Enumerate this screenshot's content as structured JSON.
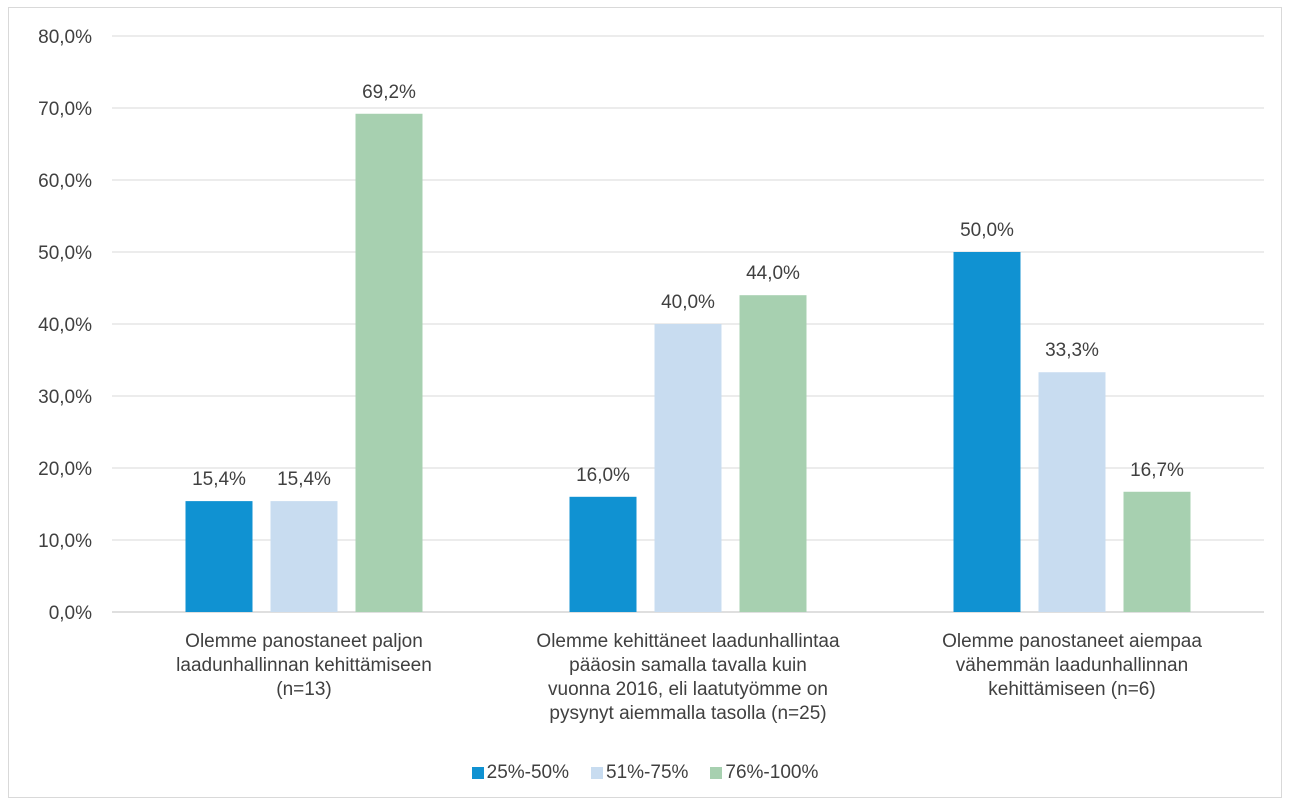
{
  "chart_data": {
    "type": "bar",
    "categories": [
      [
        "Olemme panostaneet paljon",
        "laadunhallinnan kehittämiseen",
        "(n=13)"
      ],
      [
        "Olemme kehittäneet laadunhallintaa",
        "pääosin samalla tavalla kuin",
        "vuonna 2016, eli laatutyömme on",
        "pysynyt aiemmalla tasolla (n=25)"
      ],
      [
        "Olemme panostaneet aiempaa",
        "vähemmän laadunhallinnan",
        "kehittämiseen (n=6)"
      ]
    ],
    "series": [
      {
        "name": "25%-50%",
        "color": "#1092d2",
        "values": [
          15.4,
          16.0,
          50.0
        ],
        "labels": [
          "15,4%",
          "16,0%",
          "50,0%"
        ]
      },
      {
        "name": "51%-75%",
        "color": "#c8dcf0",
        "values": [
          15.4,
          40.0,
          33.3
        ],
        "labels": [
          "15,4%",
          "40,0%",
          "33,3%"
        ]
      },
      {
        "name": "76%-100%",
        "color": "#a7d0b0",
        "values": [
          69.2,
          44.0,
          16.7
        ],
        "labels": [
          "69,2%",
          "44,0%",
          "16,7%"
        ]
      }
    ],
    "ylim": [
      0,
      80
    ],
    "yticks": [
      "0,0%",
      "10,0%",
      "20,0%",
      "30,0%",
      "40,0%",
      "50,0%",
      "60,0%",
      "70,0%",
      "80,0%"
    ],
    "grid": true,
    "legend": "bottom"
  }
}
